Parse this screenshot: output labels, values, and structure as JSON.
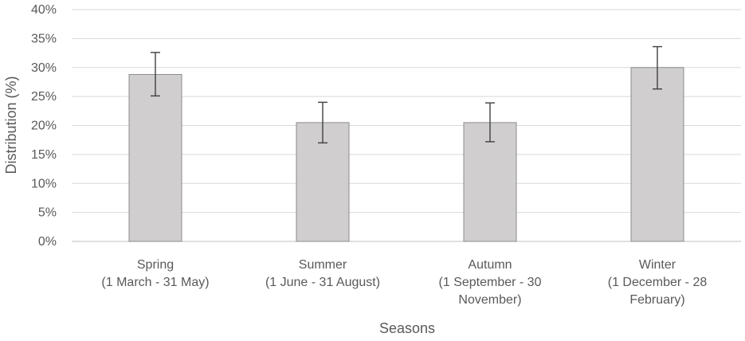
{
  "chart_data": {
    "type": "bar",
    "categories": [
      [
        "Spring",
        "(1 March - 31 May)"
      ],
      [
        "Summer",
        "(1 June - 31 August)"
      ],
      [
        "Autumn",
        "(1 September - 30",
        "November)"
      ],
      [
        "Winter",
        "(1 December - 28",
        "February)"
      ]
    ],
    "values": [
      28.8,
      20.5,
      20.5,
      30.0
    ],
    "error_low": [
      25.1,
      17.0,
      17.2,
      26.3
    ],
    "error_high": [
      32.6,
      24.0,
      23.9,
      33.6
    ],
    "xlabel": "Seasons",
    "ylabel": "Distribution (%)",
    "ylim": [
      0,
      40
    ],
    "yticks": [
      "0%",
      "5%",
      "10%",
      "15%",
      "20%",
      "25%",
      "30%",
      "35%",
      "40%"
    ],
    "grid": true,
    "colors": {
      "bar_fill": "#d0cece",
      "bar_stroke": "#8c8c8c",
      "error_bar": "#404040",
      "grid": "#d9d9d9"
    }
  }
}
